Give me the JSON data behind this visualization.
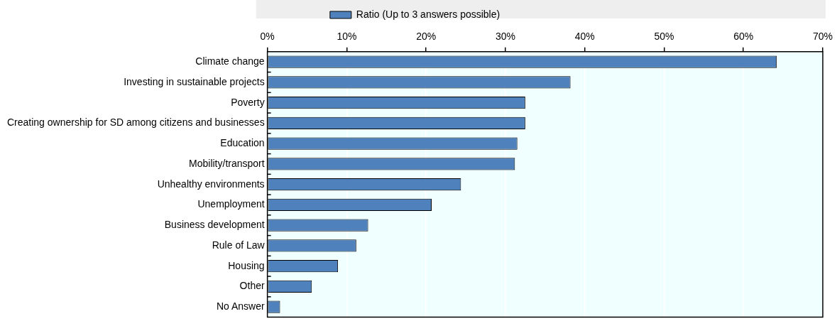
{
  "chart_data": {
    "type": "bar",
    "orientation": "horizontal",
    "categories": [
      "Climate change",
      "Investing in sustainable projects",
      "Poverty",
      "Creating ownership for SD among citizens and businesses",
      "Education",
      "Mobility/transport",
      "Unhealthy environments",
      "Unemployment",
      "Business development",
      "Rule of Law",
      "Housing",
      "Other",
      "No Answer"
    ],
    "series": [
      {
        "name": "Ratio (Up to 3 answers possible)",
        "color": "#4f81bd",
        "values": [
          64.2,
          38.2,
          32.5,
          32.5,
          31.5,
          31.2,
          24.4,
          20.7,
          12.7,
          11.2,
          8.9,
          5.6,
          1.6
        ]
      }
    ],
    "xlim": [
      0,
      70
    ],
    "xticks": [
      {
        "value": 0,
        "label": "0%"
      },
      {
        "value": 10,
        "label": "10%"
      },
      {
        "value": 20,
        "label": "20%"
      },
      {
        "value": 30,
        "label": "30%"
      },
      {
        "value": 40,
        "label": "40%"
      },
      {
        "value": 50,
        "label": "50%"
      },
      {
        "value": 60,
        "label": "60%"
      },
      {
        "value": 70,
        "label": "70%"
      }
    ],
    "grid": "x",
    "legend": "top"
  }
}
